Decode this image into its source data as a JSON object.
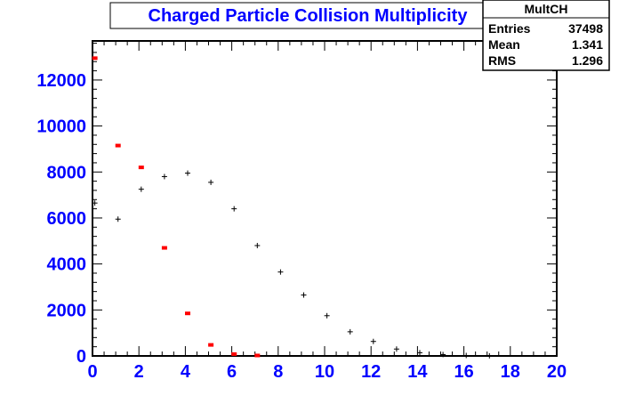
{
  "chart_data": {
    "type": "scatter",
    "title": "Charged Particle Collision Multiplicity",
    "xlabel": "",
    "ylabel": "",
    "xlim": [
      0,
      20
    ],
    "ylim": [
      0,
      13700
    ],
    "grid": false,
    "x_ticks": [
      "0",
      "2",
      "4",
      "6",
      "8",
      "10",
      "12",
      "14",
      "16",
      "18",
      "20"
    ],
    "y_ticks": [
      "0",
      "2000",
      "4000",
      "6000",
      "8000",
      "10000",
      "12000"
    ],
    "stats_box": {
      "name": "MultCH",
      "rows": [
        {
          "label": "Entries",
          "value": "37498"
        },
        {
          "label": "Mean",
          "value": "1.341"
        },
        {
          "label": "RMS",
          "value": "1.296"
        }
      ]
    },
    "series": [
      {
        "color": "#ff0000",
        "marker": "square",
        "x": [
          0.1,
          1.1,
          2.1,
          3.1,
          4.1,
          5.1,
          6.1,
          7.1
        ],
        "y": [
          12950,
          9150,
          8200,
          4700,
          1850,
          480,
          80,
          20
        ]
      },
      {
        "color": "#000000",
        "marker": "cross",
        "x": [
          0.1,
          1.1,
          2.1,
          3.1,
          4.1,
          5.1,
          6.1,
          7.1,
          8.1,
          9.1,
          10.1,
          11.1,
          12.1,
          13.1,
          14.1,
          15.1,
          16.1,
          17.1
        ],
        "y": [
          6650,
          5950,
          7250,
          7800,
          7950,
          7550,
          6400,
          4800,
          3650,
          2650,
          1750,
          1050,
          630,
          300,
          140,
          60,
          20,
          5
        ]
      }
    ]
  }
}
